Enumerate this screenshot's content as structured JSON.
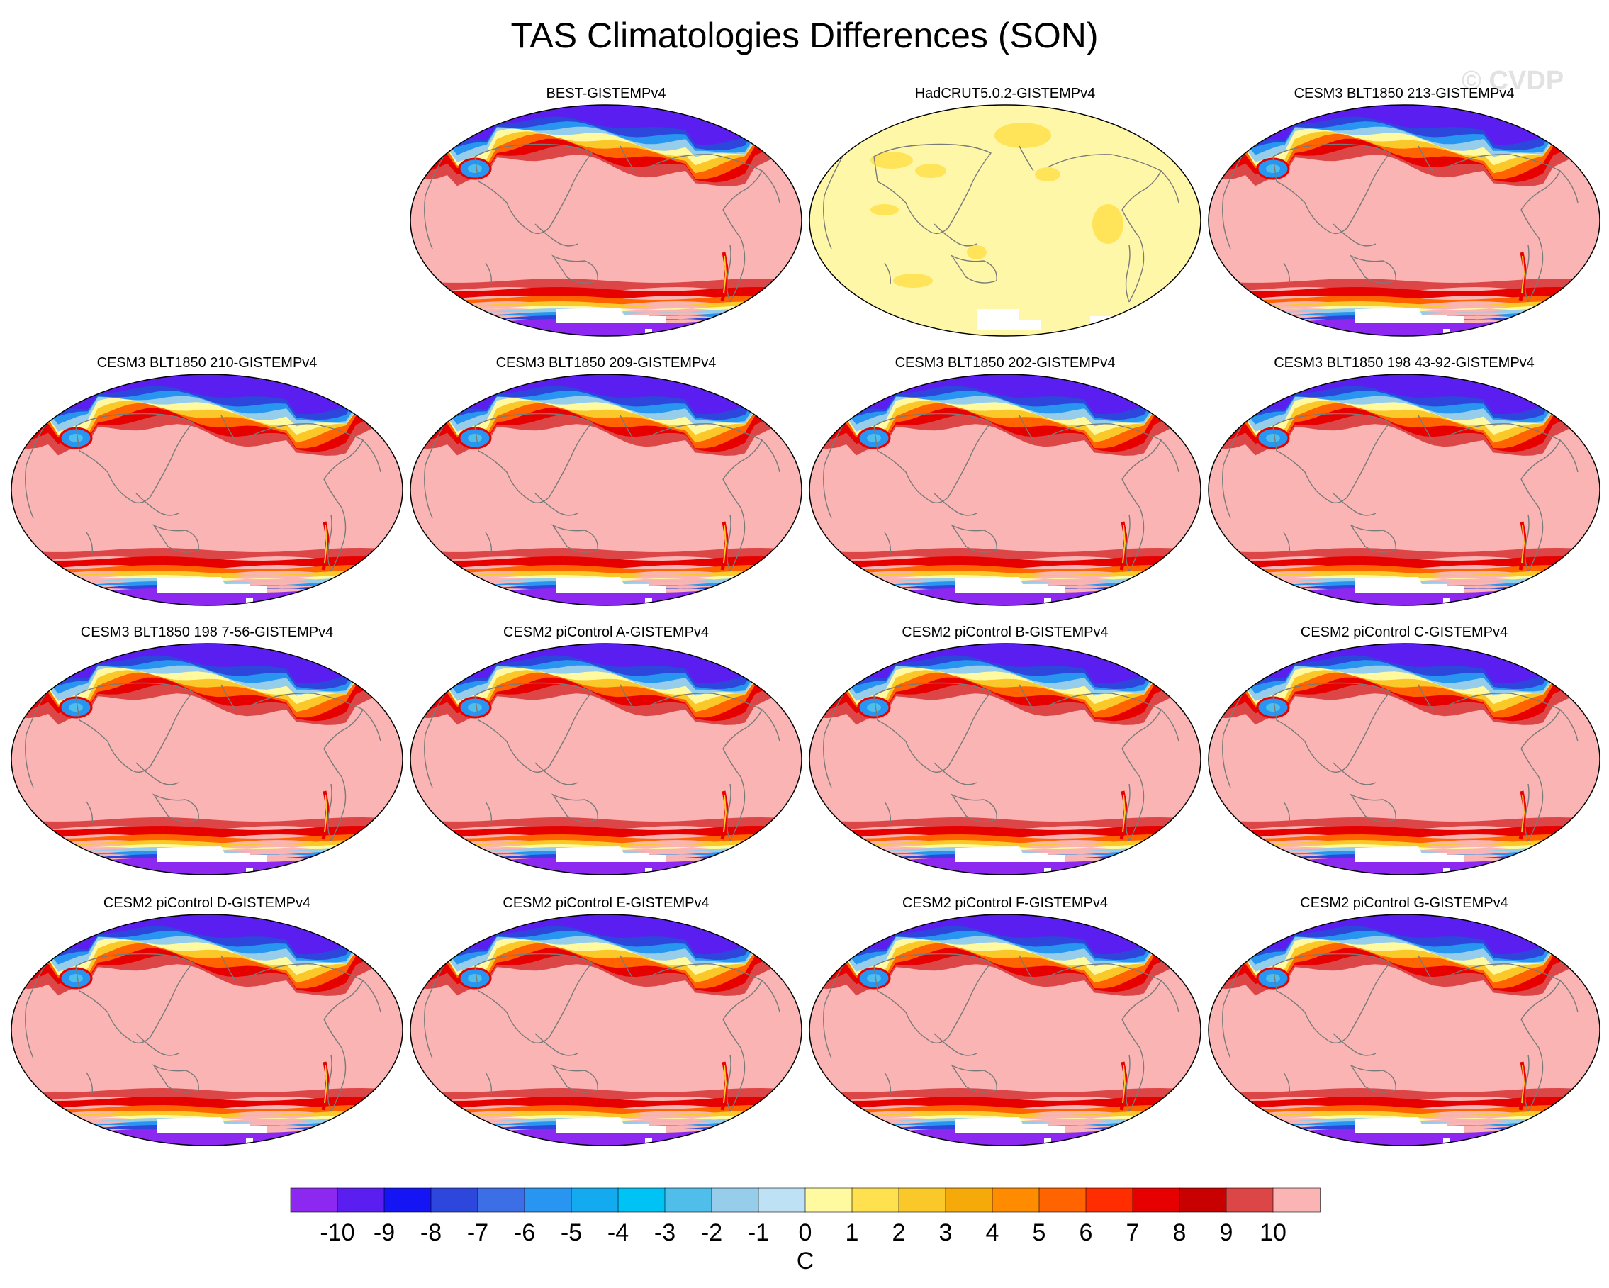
{
  "figure": {
    "title": "TAS Climatologies Differences (SON)",
    "watermark": "© CVDP"
  },
  "panels": [
    {
      "title": "BEST-GISTEMPv4",
      "style": "model"
    },
    {
      "title": "HadCRUT5.0.2-GISTEMPv4",
      "style": "obs"
    },
    {
      "title": "CESM3 BLT1850 213-GISTEMPv4",
      "style": "model"
    },
    {
      "title": "CESM3 BLT1850 210-GISTEMPv4",
      "style": "model"
    },
    {
      "title": "CESM3 BLT1850 209-GISTEMPv4",
      "style": "model"
    },
    {
      "title": "CESM3 BLT1850 202-GISTEMPv4",
      "style": "model"
    },
    {
      "title": "CESM3 BLT1850 198 43-92-GISTEMPv4",
      "style": "model"
    },
    {
      "title": "CESM3 BLT1850 198 7-56-GISTEMPv4",
      "style": "model"
    },
    {
      "title": "CESM2 piControl A-GISTEMPv4",
      "style": "model"
    },
    {
      "title": "CESM2 piControl B-GISTEMPv4",
      "style": "model"
    },
    {
      "title": "CESM2 piControl C-GISTEMPv4",
      "style": "model"
    },
    {
      "title": "CESM2 piControl D-GISTEMPv4",
      "style": "model"
    },
    {
      "title": "CESM2 piControl E-GISTEMPv4",
      "style": "model"
    },
    {
      "title": "CESM2 piControl F-GISTEMPv4",
      "style": "model"
    },
    {
      "title": "CESM2 piControl G-GISTEMPv4",
      "style": "model"
    }
  ],
  "colorbar": {
    "unit": "C",
    "tick_labels": [
      "-10",
      "-9",
      "-8",
      "-7",
      "-6",
      "-5",
      "-4",
      "-3",
      "-2",
      "-1",
      "0",
      "1",
      "2",
      "3",
      "4",
      "5",
      "6",
      "7",
      "8",
      "9",
      "10"
    ],
    "colors": [
      "#8c28f0",
      "#5a1ef0",
      "#1414f5",
      "#2d46dc",
      "#3c6ee6",
      "#2896f0",
      "#14aaf0",
      "#00c3f5",
      "#50beeb",
      "#96cdeb",
      "#bee1f5",
      "#fffaa0",
      "#ffe150",
      "#fac828",
      "#f5aa0a",
      "#ff8c00",
      "#ff6400",
      "#ff2d00",
      "#e60000",
      "#c80000",
      "#dc4646",
      "#fab4b4"
    ]
  },
  "map_colors": {
    "ocean_warm": "#fab4b4",
    "obs_fill": "#fff7a8",
    "obs_patch": "#ffe45a",
    "coast": "#7a7a7a",
    "missing": "#ffffff"
  }
}
